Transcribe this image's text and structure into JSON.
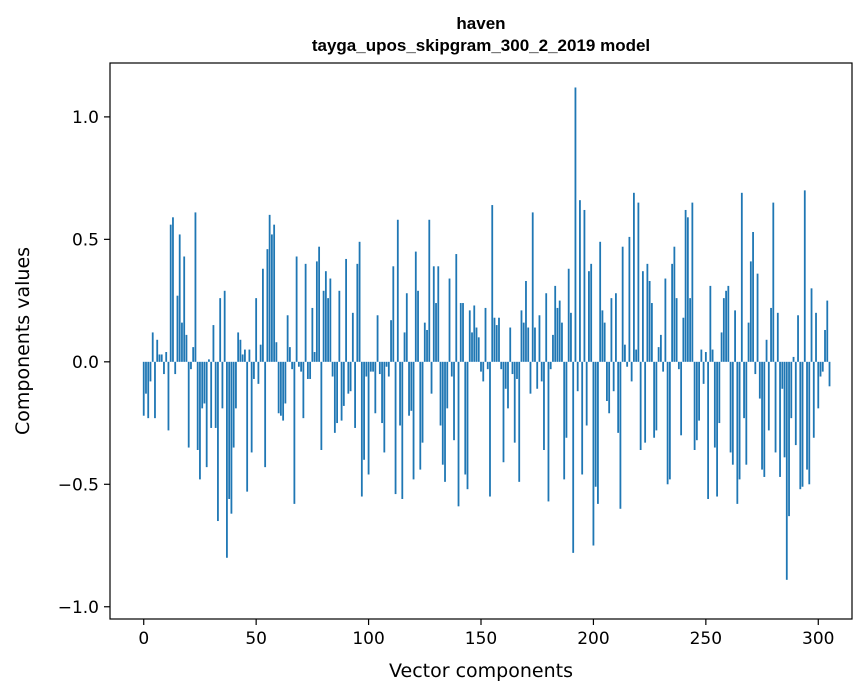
{
  "chart_data": {
    "type": "bar",
    "title": "haven",
    "subtitle": "tayga_upos_skipgram_300_2_2019 model",
    "xlabel": "Vector components",
    "ylabel": "Components values",
    "xlim": [
      -15,
      315
    ],
    "ylim": [
      -1.05,
      1.22
    ],
    "xticks": [
      0,
      50,
      100,
      150,
      200,
      250,
      300
    ],
    "xtick_labels": [
      "0",
      "50",
      "100",
      "150",
      "200",
      "250",
      "300"
    ],
    "yticks": [
      -1.0,
      -0.5,
      0.0,
      0.5,
      1.0
    ],
    "ytick_labels": [
      "−1.0",
      "−0.5",
      "0.0",
      "0.5",
      "1.0"
    ],
    "bar_color": "#1f77b4",
    "values": [
      -0.22,
      -0.13,
      -0.23,
      -0.08,
      0.12,
      -0.23,
      0.09,
      0.03,
      0.03,
      -0.05,
      0.04,
      -0.28,
      0.56,
      0.59,
      -0.05,
      0.27,
      0.52,
      0.16,
      0.43,
      0.11,
      -0.35,
      -0.03,
      0.06,
      0.61,
      -0.36,
      -0.48,
      -0.19,
      -0.17,
      -0.43,
      0.01,
      -0.27,
      0.15,
      -0.27,
      -0.65,
      0.26,
      -0.19,
      0.29,
      -0.8,
      -0.56,
      -0.62,
      -0.35,
      -0.19,
      0.12,
      0.09,
      0.03,
      0.05,
      -0.53,
      0.05,
      -0.37,
      -0.07,
      0.26,
      -0.09,
      0.07,
      0.38,
      -0.43,
      0.46,
      0.6,
      0.52,
      0.56,
      0.08,
      -0.21,
      -0.22,
      -0.24,
      -0.17,
      0.19,
      0.06,
      -0.03,
      -0.58,
      0.43,
      -0.02,
      -0.04,
      -0.23,
      0.4,
      -0.07,
      -0.07,
      0.22,
      0.04,
      0.41,
      0.47,
      -0.36,
      0.29,
      0.37,
      0.26,
      0.34,
      -0.06,
      -0.29,
      -0.25,
      0.29,
      -0.24,
      -0.18,
      0.42,
      -0.13,
      -0.12,
      0.2,
      -0.27,
      0.4,
      0.49,
      -0.55,
      -0.4,
      -0.06,
      -0.46,
      -0.04,
      -0.04,
      -0.21,
      0.19,
      -0.05,
      -0.25,
      -0.37,
      -0.02,
      -0.06,
      0.17,
      0.39,
      -0.54,
      0.58,
      -0.26,
      -0.56,
      0.12,
      0.28,
      -0.22,
      -0.2,
      -0.48,
      0.45,
      0.29,
      -0.44,
      -0.33,
      0.16,
      0.13,
      0.58,
      -0.13,
      0.39,
      0.24,
      0.39,
      -0.26,
      -0.42,
      -0.49,
      -0.19,
      0.34,
      -0.06,
      -0.32,
      0.44,
      -0.59,
      0.24,
      0.24,
      -0.46,
      -0.52,
      0.21,
      0.12,
      0.23,
      0.14,
      0.1,
      -0.04,
      -0.08,
      0.22,
      -0.03,
      -0.55,
      0.64,
      0.18,
      0.15,
      0.18,
      -0.03,
      -0.41,
      -0.11,
      -0.19,
      0.14,
      -0.05,
      -0.33,
      -0.07,
      -0.49,
      0.21,
      0.16,
      0.33,
      0.14,
      -0.13,
      0.61,
      0.14,
      -0.11,
      0.19,
      -0.08,
      -0.36,
      0.28,
      -0.57,
      -0.03,
      0.11,
      0.31,
      0.22,
      0.25,
      0.16,
      -0.48,
      -0.31,
      0.38,
      0.2,
      -0.78,
      1.12,
      -0.12,
      0.66,
      -0.46,
      0.62,
      -0.26,
      0.37,
      0.4,
      -0.75,
      -0.51,
      -0.58,
      0.49,
      0.21,
      0.16,
      -0.16,
      -0.21,
      0.26,
      -0.12,
      0.28,
      -0.29,
      -0.6,
      0.47,
      0.07,
      -0.02,
      0.51,
      -0.08,
      0.69,
      0.05,
      0.65,
      -0.36,
      0.37,
      -0.33,
      0.4,
      0.33,
      0.24,
      -0.31,
      -0.28,
      0.06,
      0.11,
      -0.04,
      0.34,
      -0.5,
      -0.48,
      0.4,
      0.47,
      0.26,
      -0.03,
      -0.3,
      0.18,
      0.62,
      0.59,
      0.26,
      0.65,
      -0.36,
      -0.32,
      -0.24,
      0.05,
      -0.09,
      0.04,
      -0.56,
      0.31,
      0.05,
      -0.35,
      -0.55,
      -0.25,
      0.12,
      0.26,
      0.29,
      0.31,
      -0.37,
      -0.42,
      0.21,
      -0.58,
      -0.48,
      0.69,
      -0.23,
      -0.42,
      0.16,
      0.41,
      0.53,
      -0.05,
      0.36,
      -0.15,
      -0.44,
      -0.47,
      0.09,
      -0.28,
      0.22,
      0.65,
      -0.37,
      0.2,
      -0.47,
      -0.11,
      -0.39,
      -0.89,
      -0.63,
      -0.23,
      0.02,
      -0.34,
      0.19,
      -0.52,
      -0.51,
      0.7,
      -0.44,
      -0.5,
      0.3,
      -0.31,
      0.2,
      -0.19,
      -0.06,
      -0.04,
      0.13,
      0.25,
      -0.1
    ]
  }
}
